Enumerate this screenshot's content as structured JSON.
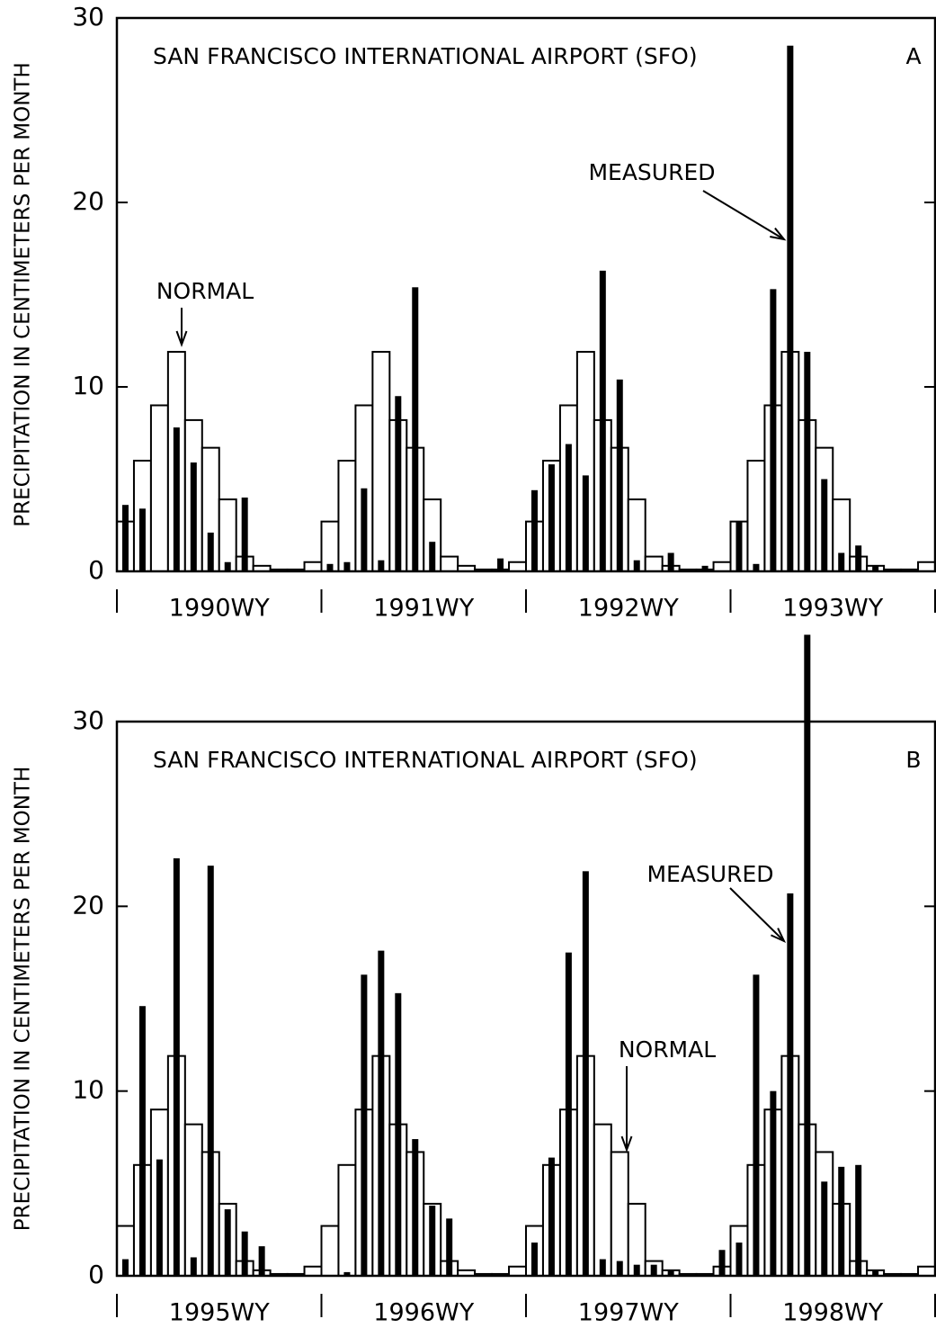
{
  "chart_data": [
    {
      "type": "bar",
      "title": "SAN FRANCISCO INTERNATIONAL AIRPORT (SFO)",
      "panel": "A",
      "y_label": "PRECIPITATION IN CENTIMETERS PER MONTH",
      "water_years": [
        "1990WY",
        "1991WY",
        "1992WY",
        "1993WY"
      ],
      "ylim": [
        0,
        30
      ],
      "yticks": [
        0,
        10,
        20,
        30
      ],
      "series": [
        {
          "name": "NORMAL",
          "color": "#ffffff",
          "values": [
            2.7,
            6.0,
            9.0,
            11.9,
            8.2,
            6.7,
            3.9,
            0.8,
            0.3,
            0.1,
            0.1,
            0.5,
            2.7,
            6.0,
            9.0,
            11.9,
            8.2,
            6.7,
            3.9,
            0.8,
            0.3,
            0.1,
            0.1,
            0.5,
            2.7,
            6.0,
            9.0,
            11.9,
            8.2,
            6.7,
            3.9,
            0.8,
            0.3,
            0.1,
            0.1,
            0.5,
            2.7,
            6.0,
            9.0,
            11.9,
            8.2,
            6.7,
            3.9,
            0.8,
            0.3,
            0.1,
            0.1,
            0.5
          ]
        },
        {
          "name": "MEASURED",
          "color": "#000000",
          "values": [
            3.6,
            3.4,
            0,
            7.8,
            5.9,
            2.1,
            0.5,
            4.0,
            0,
            0,
            0,
            0,
            0.4,
            0.5,
            4.5,
            0.6,
            9.5,
            15.4,
            1.6,
            0,
            0,
            0,
            0.7,
            0,
            4.4,
            5.8,
            6.9,
            5.2,
            16.3,
            10.4,
            0.6,
            0,
            1.0,
            0,
            0.3,
            0,
            2.7,
            0.4,
            15.3,
            28.5,
            11.9,
            5.0,
            1.0,
            1.4,
            0.3,
            0,
            0,
            0
          ]
        }
      ]
    },
    {
      "type": "bar",
      "title": "SAN FRANCISCO INTERNATIONAL AIRPORT (SFO)",
      "panel": "B",
      "y_label": "PRECIPITATION IN CENTIMETERS PER MONTH",
      "water_years": [
        "1995WY",
        "1996WY",
        "1997WY",
        "1998WY"
      ],
      "ylim": [
        0,
        30
      ],
      "yticks": [
        0,
        10,
        20,
        30
      ],
      "series": [
        {
          "name": "NORMAL",
          "color": "#ffffff",
          "values": [
            2.7,
            6.0,
            9.0,
            11.9,
            8.2,
            6.7,
            3.9,
            0.8,
            0.3,
            0.1,
            0.1,
            0.5,
            2.7,
            6.0,
            9.0,
            11.9,
            8.2,
            6.7,
            3.9,
            0.8,
            0.3,
            0.1,
            0.1,
            0.5,
            2.7,
            6.0,
            9.0,
            11.9,
            8.2,
            6.7,
            3.9,
            0.8,
            0.3,
            0.1,
            0.1,
            0.5,
            2.7,
            6.0,
            9.0,
            11.9,
            8.2,
            6.7,
            3.9,
            0.8,
            0.3,
            0.1,
            0.1,
            0.5
          ]
        },
        {
          "name": "MEASURED",
          "color": "#000000",
          "values": [
            0.9,
            14.6,
            6.3,
            22.6,
            1.0,
            22.2,
            3.6,
            2.4,
            1.6,
            0,
            0,
            0,
            0,
            0.2,
            16.3,
            17.6,
            15.3,
            7.4,
            3.8,
            3.1,
            0,
            0,
            0,
            0,
            1.8,
            6.4,
            17.5,
            21.9,
            0.9,
            0.8,
            0.6,
            0.6,
            0.3,
            0,
            0,
            1.4,
            1.8,
            16.3,
            10.0,
            20.7,
            34.7,
            5.1,
            5.9,
            6.0,
            0.3,
            0,
            0,
            0
          ]
        }
      ]
    }
  ]
}
